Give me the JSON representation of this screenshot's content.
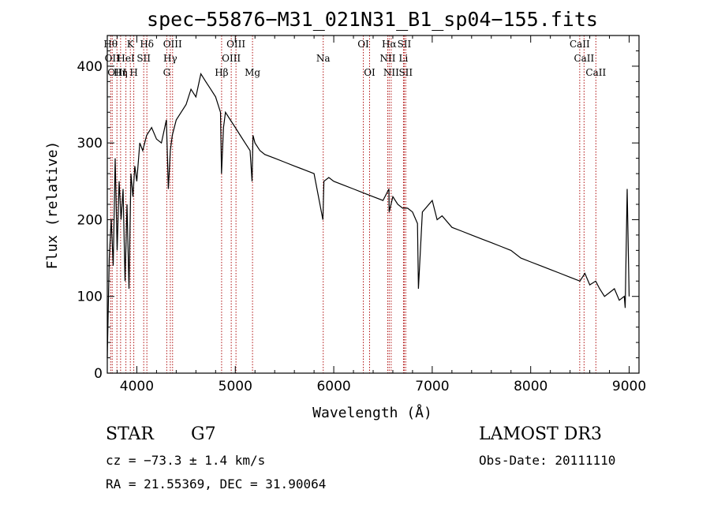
{
  "chart_data": {
    "type": "line",
    "title": "spec−55876−M31_021N31_B1_sp04−155.fits",
    "xlabel": "Wavelength (Å)",
    "ylabel": "Flux (relative)",
    "xlim": [
      3700,
      9100
    ],
    "ylim": [
      0,
      440
    ],
    "xticks": [
      4000,
      5000,
      6000,
      7000,
      8000,
      9000
    ],
    "yticks": [
      0,
      100,
      200,
      300,
      400
    ],
    "series": [
      {
        "x": [
          3700,
          3720,
          3740,
          3760,
          3780,
          3800,
          3820,
          3840,
          3860,
          3880,
          3900,
          3920,
          3940,
          3960,
          3980,
          4000,
          4030,
          4060,
          4100,
          4150,
          4200,
          4250,
          4300,
          4320,
          4340,
          4360,
          4400,
          4450,
          4500,
          4550,
          4600,
          4650,
          4700,
          4750,
          4800,
          4850,
          4860,
          4880,
          4900,
          4950,
          5000,
          5050,
          5100,
          5150,
          5170,
          5180,
          5200,
          5250,
          5300,
          5400,
          5500,
          5600,
          5700,
          5800,
          5890,
          5900,
          5950,
          6000,
          6100,
          6200,
          6300,
          6400,
          6500,
          6560,
          6563,
          6600,
          6650,
          6700,
          6750,
          6800,
          6850,
          6860,
          6900,
          7000,
          7050,
          7100,
          7200,
          7300,
          7400,
          7500,
          7600,
          7700,
          7800,
          7900,
          8000,
          8100,
          8200,
          8300,
          8400,
          8500,
          8550,
          8600,
          8660,
          8700,
          8750,
          8800,
          8850,
          8900,
          8950,
          8960,
          8980,
          9000
        ],
        "y": [
          20,
          150,
          200,
          140,
          280,
          160,
          250,
          200,
          240,
          120,
          220,
          110,
          260,
          230,
          270,
          250,
          300,
          290,
          310,
          320,
          305,
          300,
          330,
          240,
          290,
          310,
          330,
          340,
          350,
          370,
          360,
          390,
          380,
          370,
          360,
          340,
          260,
          320,
          340,
          330,
          320,
          310,
          300,
          290,
          250,
          310,
          300,
          290,
          285,
          280,
          275,
          270,
          265,
          260,
          200,
          250,
          255,
          250,
          245,
          240,
          235,
          230,
          225,
          240,
          210,
          230,
          220,
          215,
          215,
          210,
          195,
          110,
          210,
          225,
          200,
          205,
          190,
          185,
          180,
          175,
          170,
          165,
          160,
          150,
          145,
          140,
          135,
          130,
          125,
          120,
          130,
          115,
          120,
          110,
          100,
          105,
          110,
          95,
          100,
          85,
          240,
          100
        ],
        "color": "#000000"
      }
    ],
    "line_markers": [
      {
        "wl": 3734,
        "label": "Hθ",
        "row": 1
      },
      {
        "wl": 3750,
        "label": "OII",
        "row": 2
      },
      {
        "wl": 3798,
        "label": "OIII",
        "row": 3
      },
      {
        "wl": 3835,
        "label": "Hη",
        "row": 3
      },
      {
        "wl": 3889,
        "label": "HeI",
        "row": 2
      },
      {
        "wl": 3934,
        "label": "K",
        "row": 1
      },
      {
        "wl": 3969,
        "label": "H",
        "row": 3
      },
      {
        "wl": 4070,
        "label": "SII",
        "row": 2
      },
      {
        "wl": 4102,
        "label": "Hδ",
        "row": 1
      },
      {
        "wl": 4304,
        "label": "G",
        "row": 3
      },
      {
        "wl": 4340,
        "label": "Hγ",
        "row": 2
      },
      {
        "wl": 4363,
        "label": "OIII",
        "row": 1
      },
      {
        "wl": 4861,
        "label": "Hβ",
        "row": 3
      },
      {
        "wl": 4959,
        "label": "OIII",
        "row": 2
      },
      {
        "wl": 5007,
        "label": "OIII",
        "row": 1
      },
      {
        "wl": 5175,
        "label": "Mg",
        "row": 3
      },
      {
        "wl": 5893,
        "label": "Na",
        "row": 2
      },
      {
        "wl": 6300,
        "label": "OI",
        "row": 1
      },
      {
        "wl": 6364,
        "label": "OI",
        "row": 3
      },
      {
        "wl": 6548,
        "label": "NII",
        "row": 2
      },
      {
        "wl": 6563,
        "label": "Hα",
        "row": 1
      },
      {
        "wl": 6583,
        "label": "NII",
        "row": 3
      },
      {
        "wl": 6708,
        "label": "Li",
        "row": 2
      },
      {
        "wl": 6716,
        "label": "SII",
        "row": 1
      },
      {
        "wl": 6731,
        "label": "SII",
        "row": 3
      },
      {
        "wl": 8498,
        "label": "CaII",
        "row": 1
      },
      {
        "wl": 8542,
        "label": "CaII",
        "row": 2
      },
      {
        "wl": 8662,
        "label": "CaII",
        "row": 3
      }
    ],
    "grid": false,
    "marker_color": "#b01010"
  },
  "info": {
    "class": "STAR",
    "subclass": "G7",
    "survey": "LAMOST DR3",
    "cz": "cz = −73.3 ± 1.4 km/s",
    "obsdate": "Obs-Date: 20111110",
    "radec": "RA =  21.55369, DEC =  31.90064"
  }
}
